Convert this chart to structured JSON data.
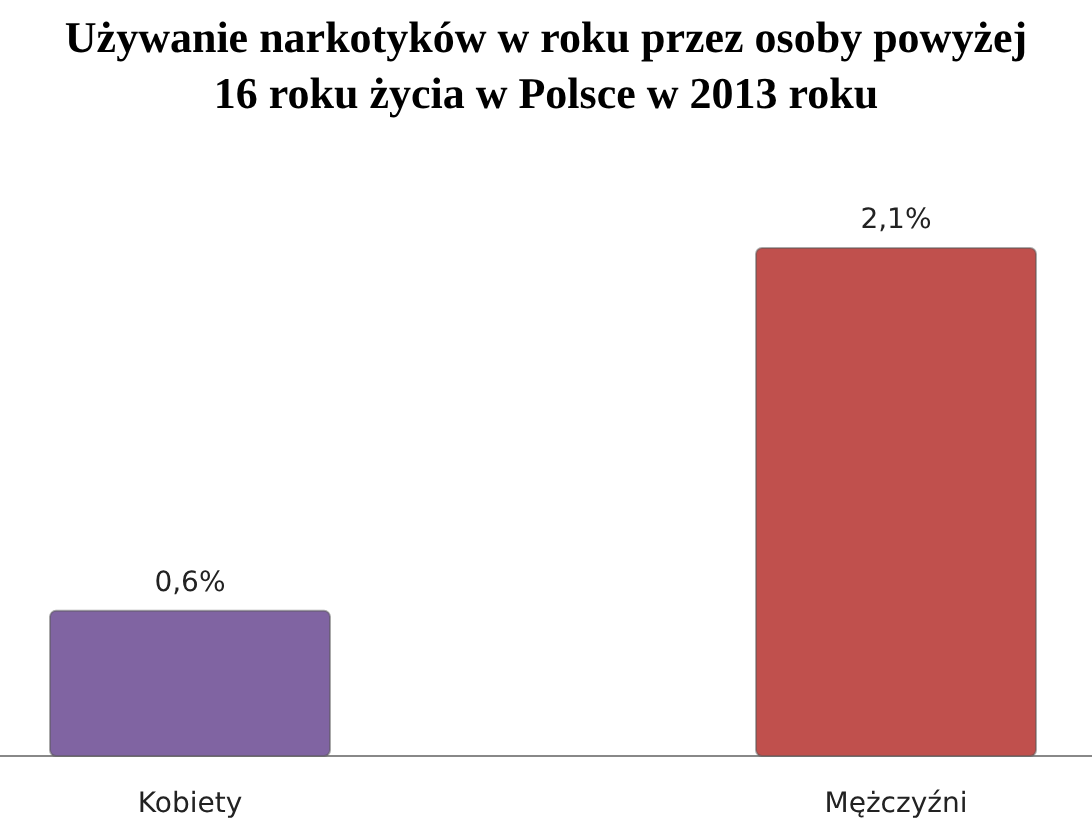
{
  "chart_data": {
    "type": "bar",
    "title": "Używanie narkotyków w roku przez osoby powyżej 16 roku życia w Polsce w 2013 roku",
    "categories": [
      "Kobiety",
      "Mężczyźni"
    ],
    "values": [
      0.6,
      2.1
    ],
    "colors": [
      "#8064a2",
      "#c0504d"
    ],
    "value_labels": [
      "0,6%",
      "2,1%"
    ]
  }
}
